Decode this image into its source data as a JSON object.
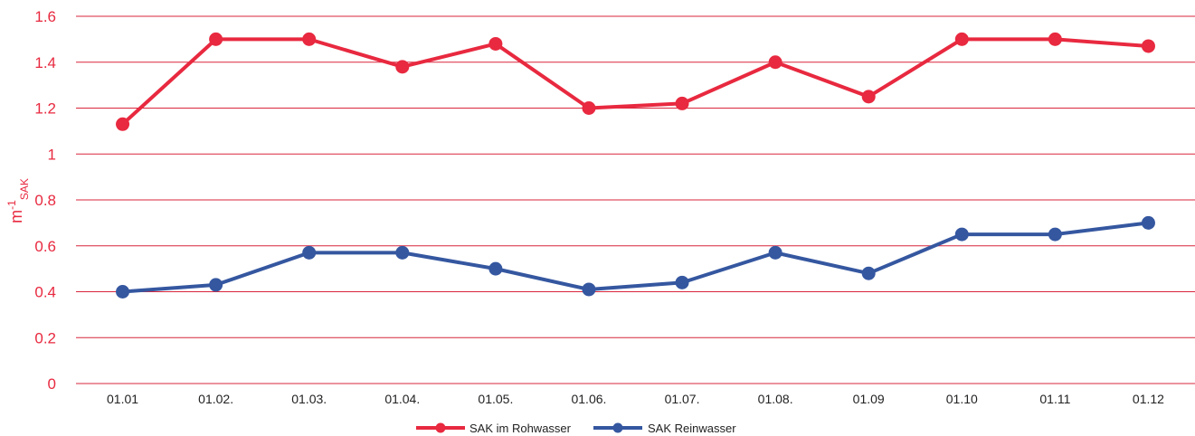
{
  "colors": {
    "raw": "#e8293f",
    "pure": "#3557a0",
    "grid": "#d9263c",
    "axis_text": "#e8293f"
  },
  "chart_data": {
    "type": "line",
    "categories": [
      "01.01",
      "01.02.",
      "01.03.",
      "01.04.",
      "01.05.",
      "01.06.",
      "01.07.",
      "01.08.",
      "01.09",
      "01.10",
      "01.11",
      "01.12"
    ],
    "series": [
      {
        "name": "SAK im Rohwasser",
        "color": "#e8293f",
        "values": [
          1.13,
          1.5,
          1.5,
          1.38,
          1.48,
          1.2,
          1.22,
          1.4,
          1.25,
          1.5,
          1.5,
          1.47
        ]
      },
      {
        "name": "SAK Reinwasser",
        "color": "#3557a0",
        "values": [
          0.4,
          0.43,
          0.57,
          0.57,
          0.5,
          0.41,
          0.44,
          0.57,
          0.48,
          0.65,
          0.65,
          0.7
        ]
      }
    ],
    "y_ticks": [
      "0",
      "0.2",
      "0.4",
      "0.6",
      "0.8",
      "1",
      "1.2",
      "1.4",
      "1.6"
    ],
    "ylim": [
      0,
      1.6
    ],
    "ylabel": {
      "base": "m",
      "sup": "-1",
      "sub": "SAK"
    },
    "xlabel": "",
    "title": "",
    "grid": true,
    "legend_position": "bottom-center"
  }
}
